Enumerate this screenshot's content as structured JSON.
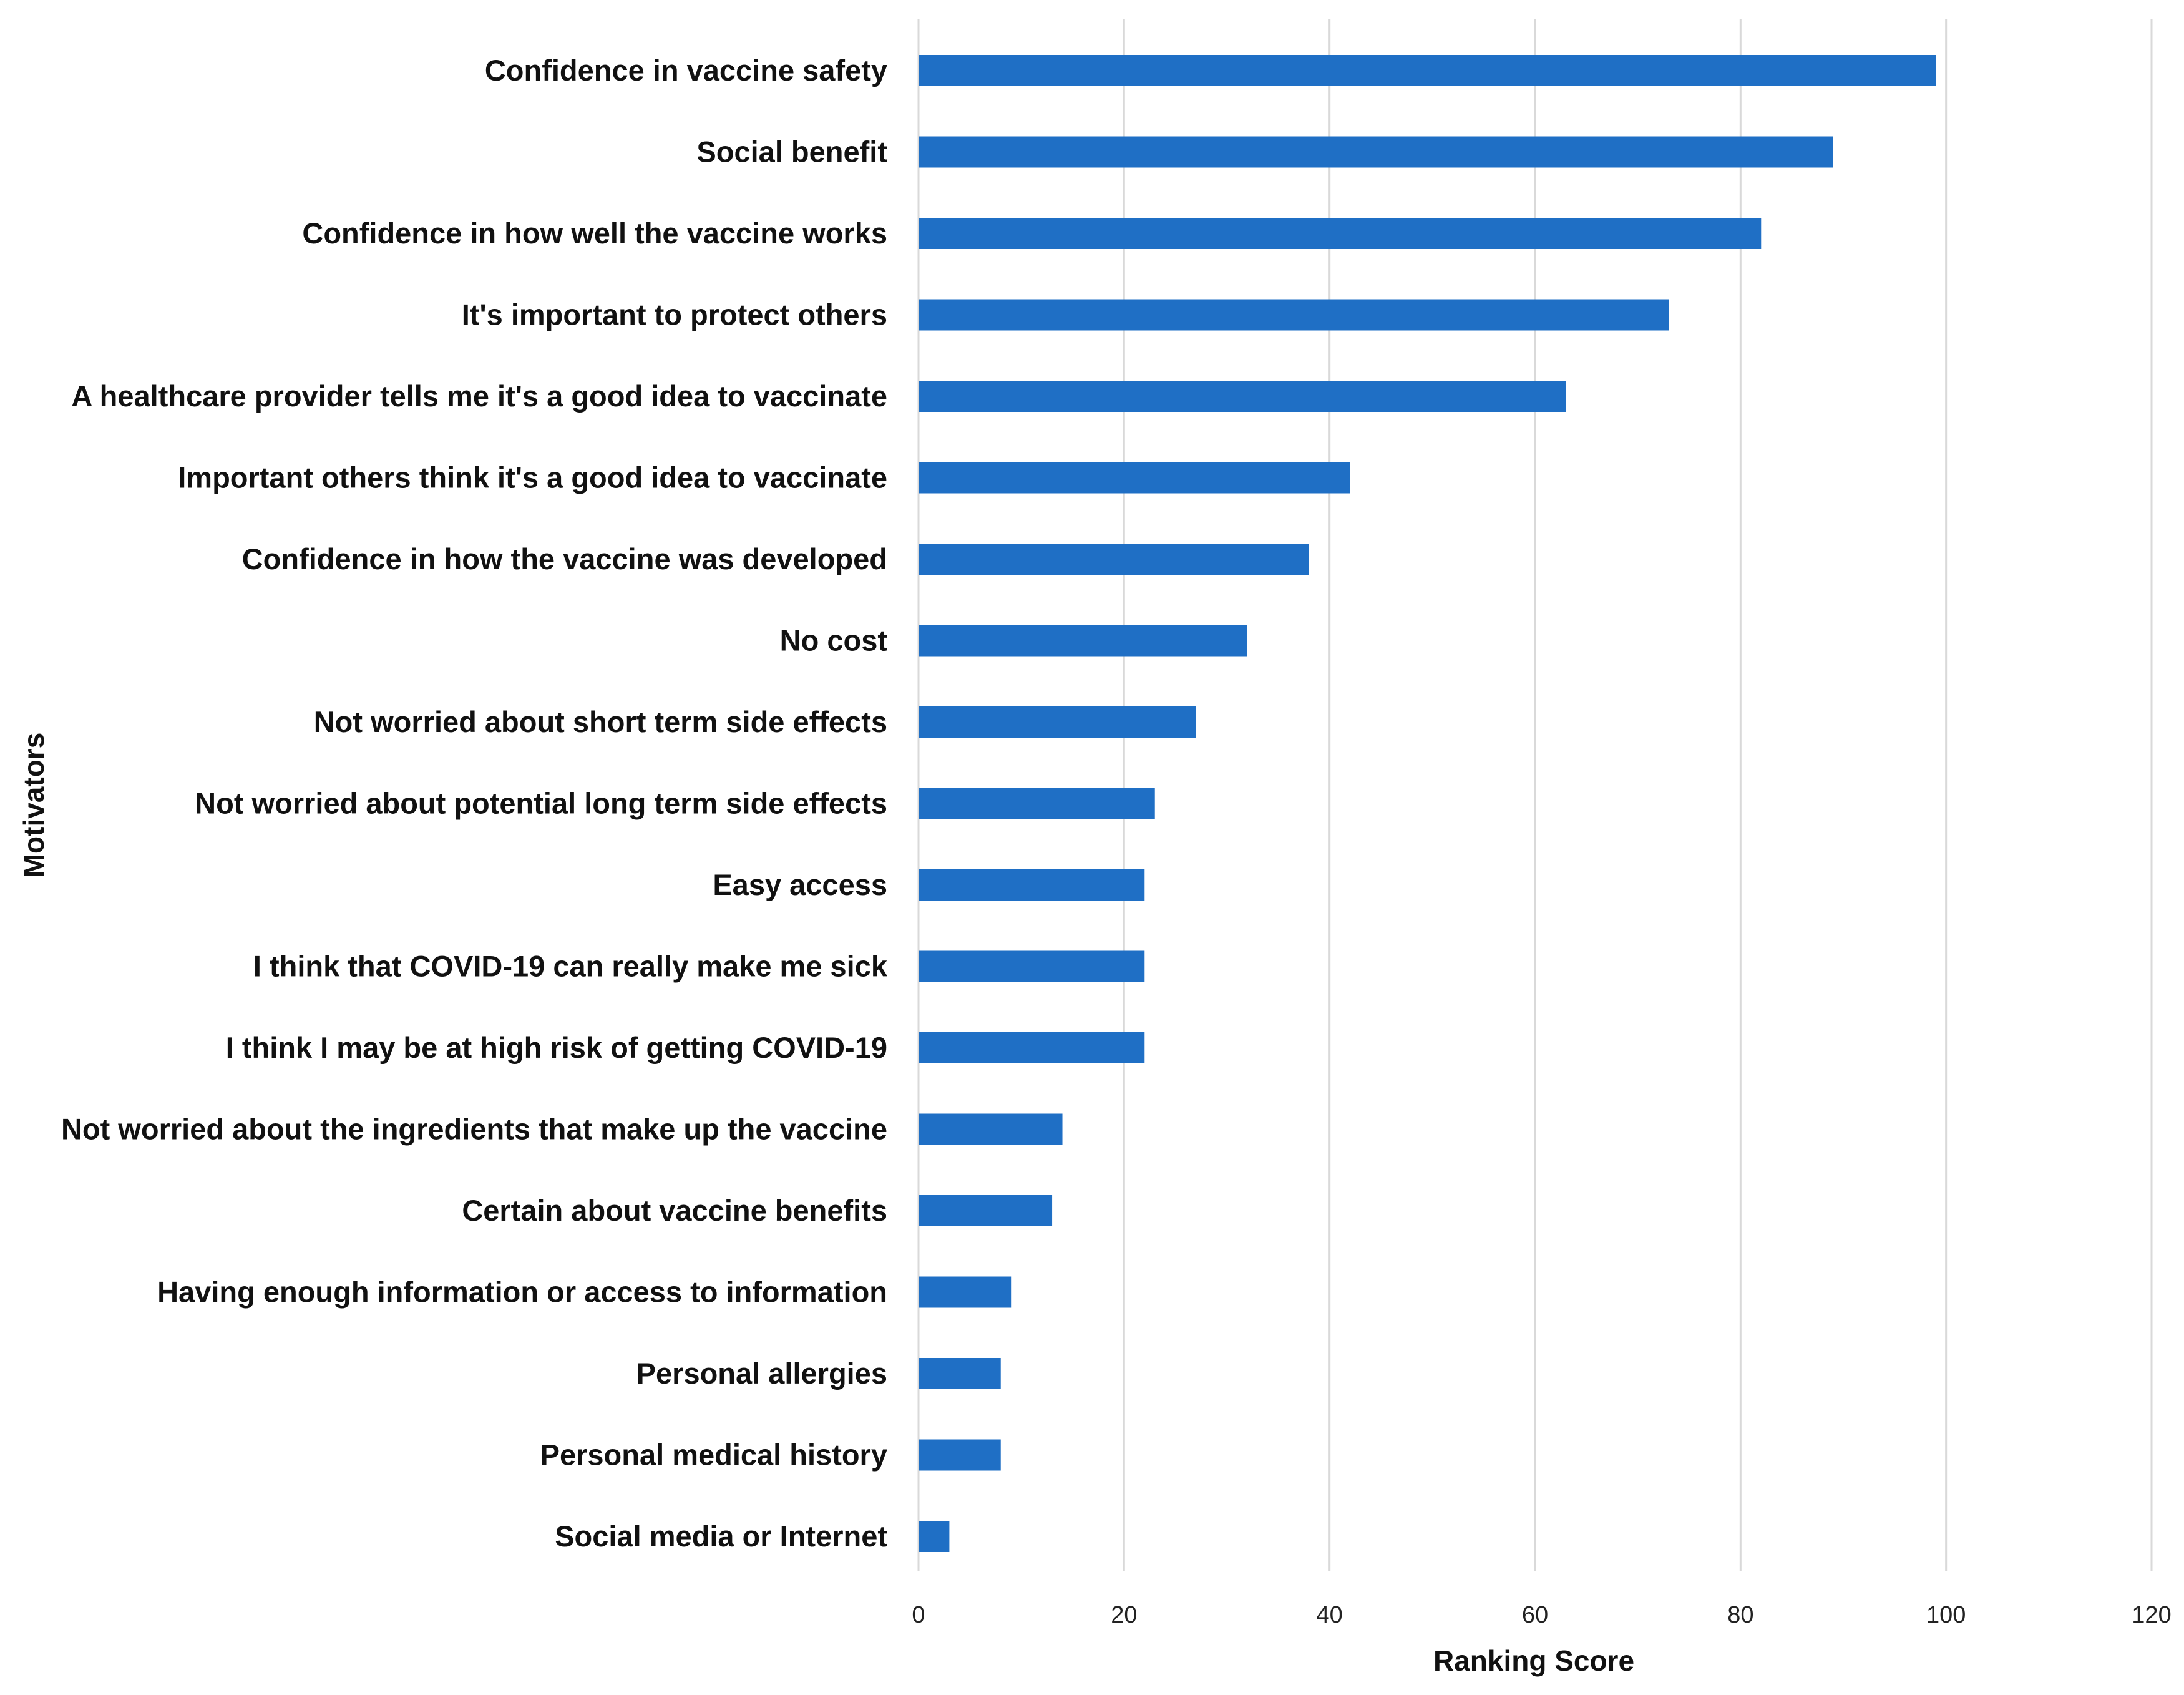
{
  "chart_data": {
    "type": "bar",
    "orientation": "horizontal",
    "title": "",
    "xlabel": "Ranking Score",
    "ylabel": "Motivators",
    "xlim": [
      0,
      120
    ],
    "xticks": [
      "0",
      "20",
      "40",
      "60",
      "80",
      "100",
      "120"
    ],
    "grid": true,
    "bar_color": "#1f6fc5",
    "categories": [
      "Confidence in vaccine safety",
      "Social benefit",
      "Confidence in how well the vaccine works",
      "It's important to protect others",
      "A healthcare provider tells me it's a good idea to vaccinate",
      "Important others think it's a good idea to vaccinate",
      "Confidence in how the vaccine was developed",
      "No cost",
      "Not worried about short term side effects",
      "Not worried about potential long term side effects",
      "Easy access",
      "I think that COVID-19 can really make me sick",
      "I think I may be at high risk of getting COVID-19",
      "Not worried about the ingredients that make up the vaccine",
      "Certain about vaccine benefits",
      "Having enough information or access to information",
      "Personal allergies",
      "Personal medical history",
      "Social media or Internet"
    ],
    "values": [
      99,
      89,
      82,
      73,
      63,
      42,
      38,
      32,
      27,
      23,
      22,
      22,
      22,
      14,
      13,
      9,
      8,
      8,
      3
    ]
  }
}
